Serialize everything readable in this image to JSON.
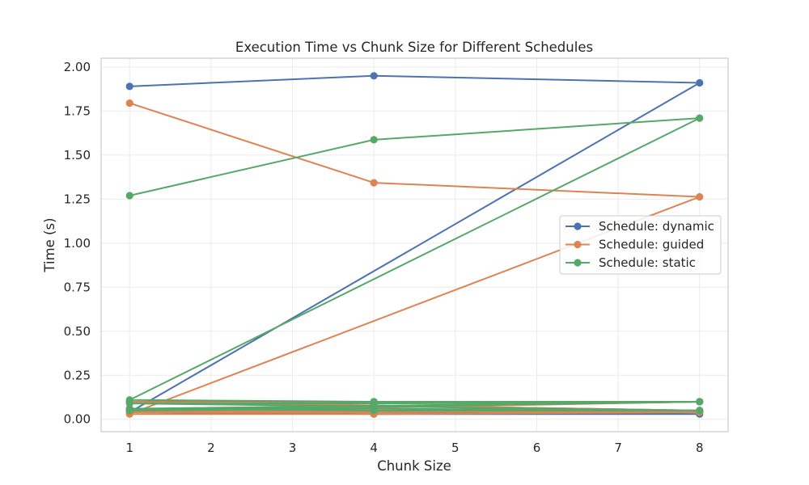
{
  "chart_data": {
    "type": "line",
    "title": "Execution Time vs Chunk Size for Different Schedules",
    "xlabel": "Chunk Size",
    "ylabel": "Time (s)",
    "xlim": [
      0.65,
      8.35
    ],
    "ylim": [
      -0.07,
      2.05
    ],
    "xticks": [
      1,
      2,
      3,
      4,
      5,
      6,
      7,
      8
    ],
    "yticks": [
      0.0,
      0.25,
      0.5,
      0.75,
      1.0,
      1.25,
      1.5,
      1.75,
      2.0
    ],
    "ytick_labels": [
      "0.00",
      "0.25",
      "0.50",
      "0.75",
      "1.00",
      "1.25",
      "1.50",
      "1.75",
      "2.00"
    ],
    "grid": true,
    "legend_position": "center-right",
    "series": [
      {
        "name": "Schedule: dynamic",
        "color": "#4c72b0",
        "x": [
          1,
          4,
          8,
          1,
          4,
          8,
          1,
          4,
          8,
          1,
          4,
          8,
          1,
          4,
          8
        ],
        "y": [
          1.89,
          1.95,
          1.91,
          0.04,
          0.03,
          0.03,
          0.06,
          0.05,
          0.05,
          0.1,
          0.1,
          0.1,
          0.05,
          0.04,
          0.04
        ]
      },
      {
        "name": "Schedule: guided",
        "color": "#dd8452",
        "x": [
          1,
          4,
          8,
          1,
          4,
          8,
          1,
          4,
          8,
          1,
          4,
          8,
          1,
          4,
          8
        ],
        "y": [
          1.795,
          1.343,
          1.263,
          0.03,
          0.03,
          0.04,
          0.05,
          0.04,
          0.05,
          0.1,
          0.09,
          0.1,
          0.04,
          0.04,
          0.05
        ]
      },
      {
        "name": "Schedule: static",
        "color": "#55a868",
        "x": [
          1,
          4,
          8,
          1,
          4,
          8,
          1,
          4,
          8,
          1,
          4,
          8,
          1,
          4,
          8
        ],
        "y": [
          1.27,
          1.587,
          1.71,
          0.11,
          0.1,
          0.1,
          0.06,
          0.05,
          0.05,
          0.09,
          0.09,
          0.1,
          0.05,
          0.06,
          0.05
        ]
      }
    ]
  }
}
